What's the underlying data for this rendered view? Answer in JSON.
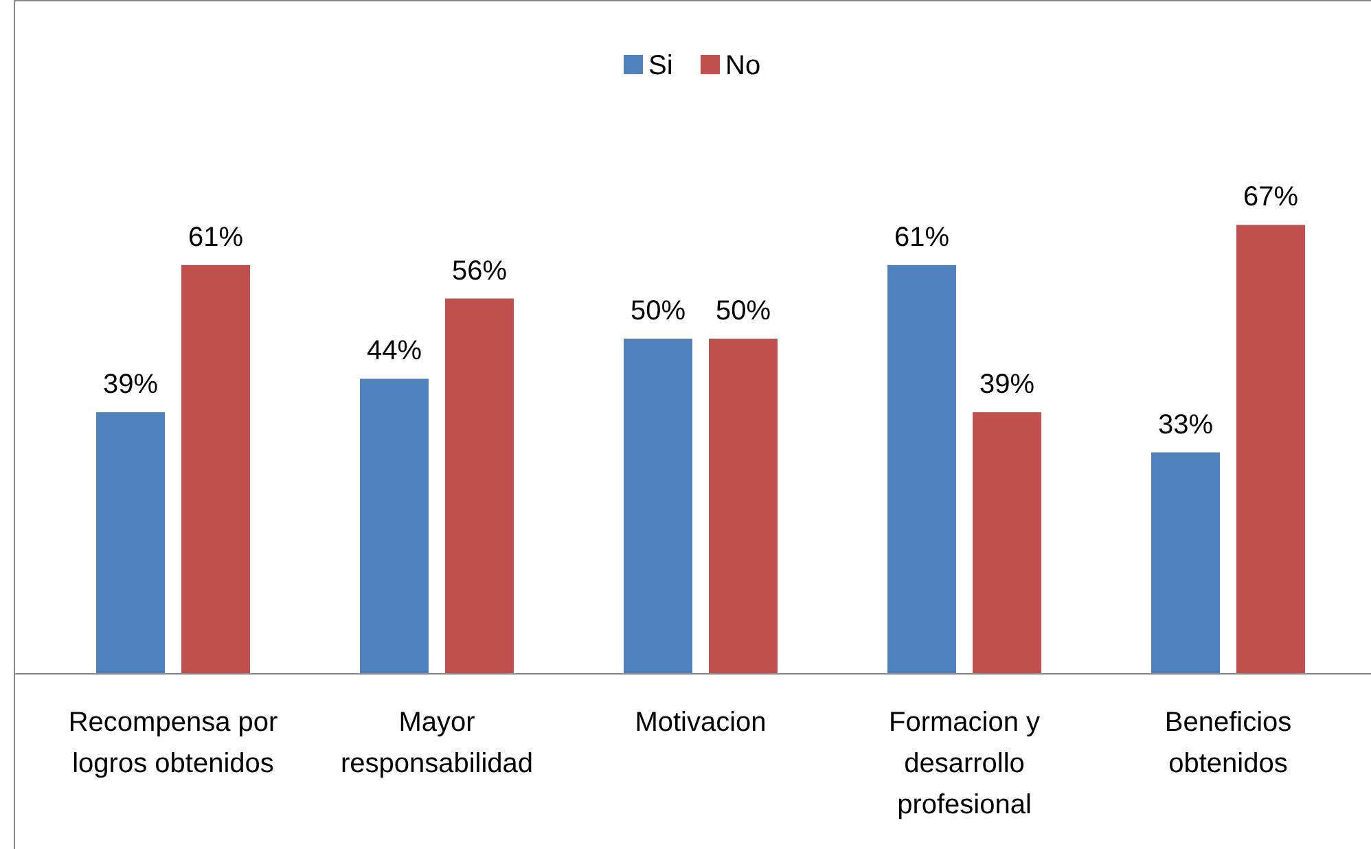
{
  "chart_data": {
    "type": "bar",
    "categories": [
      "Recompensa por logros obtenidos",
      "Mayor responsabilidad",
      "Motivacion",
      "Formacion y desarrollo profesional",
      "Beneficios obtenidos"
    ],
    "series": [
      {
        "name": "Si",
        "color": "#4f81bd",
        "values": [
          39,
          44,
          50,
          61,
          33
        ],
        "value_labels": [
          "39%",
          "44%",
          "50%",
          "61%",
          "33%"
        ]
      },
      {
        "name": "No",
        "color": "#c0504d",
        "values": [
          61,
          56,
          50,
          39,
          67
        ],
        "value_labels": [
          "61%",
          "56%",
          "50%",
          "39%",
          "67%"
        ]
      }
    ],
    "ylim": [
      0,
      100
    ],
    "tick_labels": "x",
    "legend": "top"
  }
}
